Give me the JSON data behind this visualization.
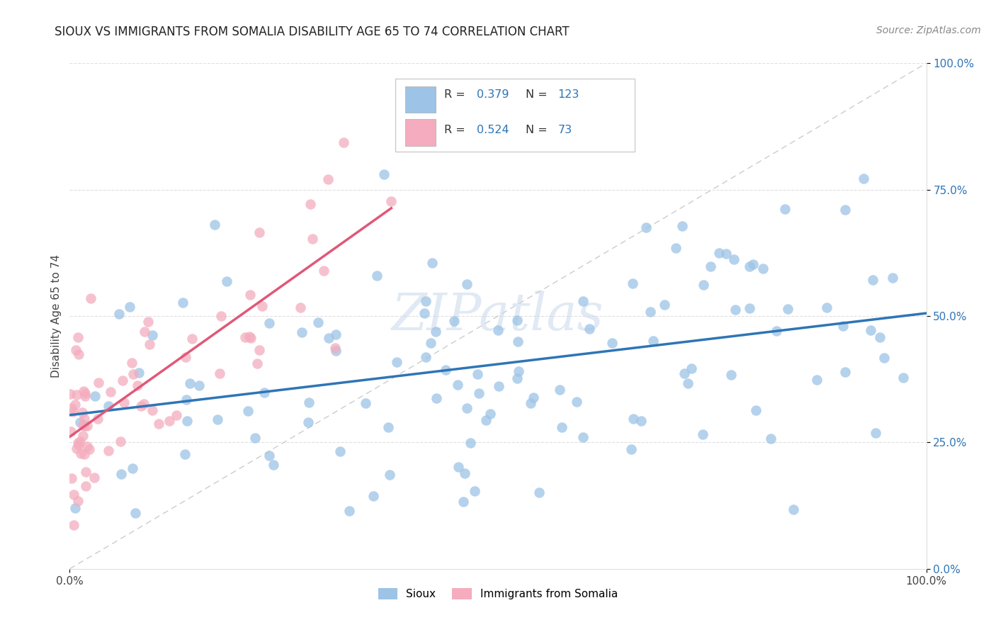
{
  "title": "SIOUX VS IMMIGRANTS FROM SOMALIA DISABILITY AGE 65 TO 74 CORRELATION CHART",
  "source": "Source: ZipAtlas.com",
  "ylabel": "Disability Age 65 to 74",
  "xlim": [
    0.0,
    1.0
  ],
  "ylim": [
    0.0,
    1.0
  ],
  "xtick_positions": [
    0.0,
    1.0
  ],
  "xtick_labels": [
    "0.0%",
    "100.0%"
  ],
  "ytick_positions": [
    0.0,
    0.25,
    0.5,
    0.75,
    1.0
  ],
  "ytick_labels": [
    "0.0%",
    "25.0%",
    "50.0%",
    "75.0%",
    "100.0%"
  ],
  "blue_color": "#9dc3e6",
  "pink_color": "#f4acbe",
  "blue_line_color": "#2e75b6",
  "pink_line_color": "#e05878",
  "diag_line_color": "#cccccc",
  "legend_r_blue": "0.379",
  "legend_n_blue": "123",
  "legend_r_pink": "0.524",
  "legend_n_pink": "73",
  "watermark": "ZIPatlas",
  "background_color": "#ffffff",
  "grid_color": "#e0e0e0",
  "title_fontsize": 12,
  "label_fontsize": 11,
  "tick_fontsize": 11,
  "source_fontsize": 10
}
